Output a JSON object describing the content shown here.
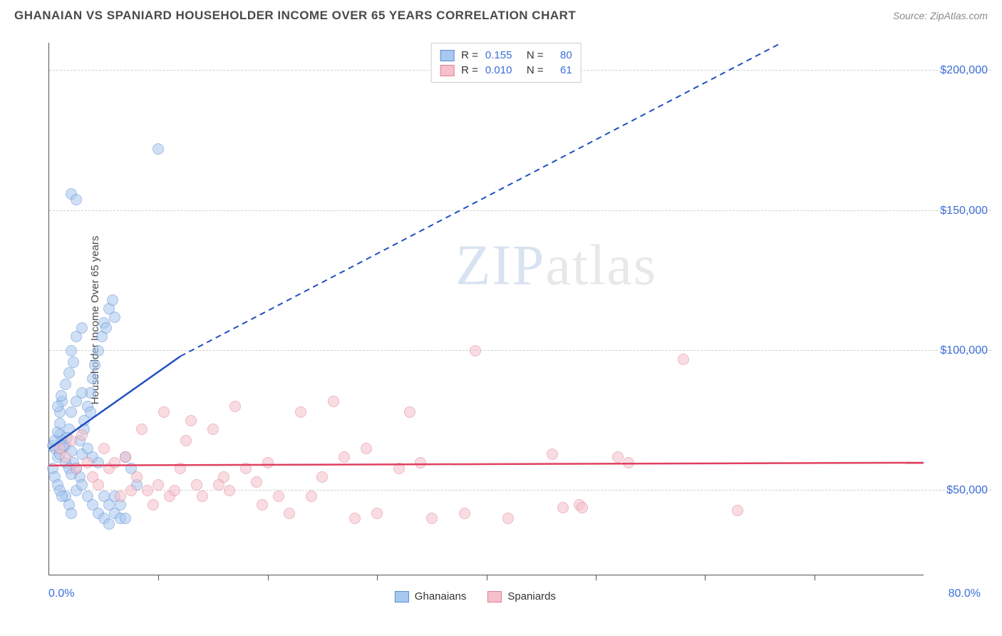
{
  "header": {
    "title": "GHANAIAN VS SPANIARD HOUSEHOLDER INCOME OVER 65 YEARS CORRELATION CHART",
    "source": "Source: ZipAtlas.com"
  },
  "chart": {
    "type": "scatter",
    "y_axis": {
      "label": "Householder Income Over 65 years",
      "min": 20000,
      "max": 210000,
      "ticks": [
        50000,
        100000,
        150000,
        200000
      ],
      "tick_labels": [
        "$50,000",
        "$100,000",
        "$150,000",
        "$200,000"
      ],
      "tick_color": "#3b6fd8"
    },
    "x_axis": {
      "min": 0,
      "max": 80,
      "tick_positions": [
        10,
        20,
        30,
        40,
        50,
        60,
        70
      ],
      "label_left": "0.0%",
      "label_right": "80.0%",
      "label_color": "#3b6fd8"
    },
    "grid_color": "#d0d0d0",
    "background_color": "#ffffff",
    "marker_radius": 8,
    "marker_opacity": 0.55,
    "watermark": "ZIPatlas",
    "series": [
      {
        "name": "Ghanaians",
        "fill_color": "#a8c8f0",
        "stroke_color": "#5a8cd0",
        "line_color": "#2050c0",
        "R": "0.155",
        "N": "80",
        "trend": {
          "x1": 0,
          "y1": 65000,
          "x2_solid": 12,
          "y2_solid": 98000,
          "x2_dash": 67,
          "y2_dash": 210000
        },
        "points": [
          [
            0.5,
            65000
          ],
          [
            0.8,
            62000
          ],
          [
            1.0,
            70000
          ],
          [
            1.2,
            68000
          ],
          [
            1.5,
            66000
          ],
          [
            1.8,
            72000
          ],
          [
            2.0,
            64000
          ],
          [
            2.2,
            60000
          ],
          [
            2.5,
            58000
          ],
          [
            2.8,
            55000
          ],
          [
            3.0,
            63000
          ],
          [
            3.2,
            75000
          ],
          [
            3.5,
            80000
          ],
          [
            3.8,
            85000
          ],
          [
            4.0,
            90000
          ],
          [
            4.2,
            95000
          ],
          [
            4.5,
            100000
          ],
          [
            4.8,
            105000
          ],
          [
            5.0,
            110000
          ],
          [
            5.2,
            108000
          ],
          [
            5.5,
            115000
          ],
          [
            5.8,
            118000
          ],
          [
            6.0,
            112000
          ],
          [
            2.0,
            156000
          ],
          [
            2.5,
            154000
          ],
          [
            1.5,
            48000
          ],
          [
            1.8,
            45000
          ],
          [
            2.0,
            42000
          ],
          [
            2.5,
            50000
          ],
          [
            3.0,
            52000
          ],
          [
            3.5,
            48000
          ],
          [
            4.0,
            45000
          ],
          [
            4.5,
            42000
          ],
          [
            5.0,
            40000
          ],
          [
            5.5,
            38000
          ],
          [
            6.0,
            42000
          ],
          [
            6.5,
            45000
          ],
          [
            7.0,
            62000
          ],
          [
            7.5,
            58000
          ],
          [
            8.0,
            52000
          ],
          [
            1.0,
            78000
          ],
          [
            1.2,
            82000
          ],
          [
            1.5,
            88000
          ],
          [
            1.8,
            92000
          ],
          [
            2.2,
            96000
          ],
          [
            2.8,
            68000
          ],
          [
            3.2,
            72000
          ],
          [
            3.8,
            78000
          ],
          [
            10.0,
            172000
          ],
          [
            0.3,
            58000
          ],
          [
            0.5,
            55000
          ],
          [
            0.8,
            52000
          ],
          [
            1.0,
            50000
          ],
          [
            1.2,
            48000
          ],
          [
            0.3,
            66000
          ],
          [
            0.5,
            68000
          ],
          [
            0.8,
            71000
          ],
          [
            1.0,
            74000
          ],
          [
            5.0,
            48000
          ],
          [
            5.5,
            45000
          ],
          [
            6.0,
            48000
          ],
          [
            6.5,
            40000
          ],
          [
            7.0,
            40000
          ],
          [
            2.0,
            100000
          ],
          [
            2.5,
            105000
          ],
          [
            3.0,
            108000
          ],
          [
            2.0,
            78000
          ],
          [
            2.5,
            82000
          ],
          [
            3.0,
            85000
          ],
          [
            3.5,
            65000
          ],
          [
            4.0,
            62000
          ],
          [
            4.5,
            60000
          ],
          [
            1.5,
            60000
          ],
          [
            1.8,
            58000
          ],
          [
            2.0,
            56000
          ],
          [
            1.0,
            63000
          ],
          [
            1.3,
            66000
          ],
          [
            1.6,
            69000
          ],
          [
            0.8,
            80000
          ],
          [
            1.1,
            84000
          ]
        ]
      },
      {
        "name": "Spaniards",
        "fill_color": "#f5c0cc",
        "stroke_color": "#e08090",
        "line_color": "#e04060",
        "R": "0.010",
        "N": "61",
        "trend": {
          "x1": 0,
          "y1": 59000,
          "x2_solid": 80,
          "y2_solid": 60000,
          "x2_dash": 80,
          "y2_dash": 60000
        },
        "points": [
          [
            1.0,
            65000
          ],
          [
            1.5,
            62000
          ],
          [
            2.0,
            68000
          ],
          [
            2.5,
            58000
          ],
          [
            3.0,
            70000
          ],
          [
            3.5,
            60000
          ],
          [
            4.0,
            55000
          ],
          [
            4.5,
            52000
          ],
          [
            5.0,
            65000
          ],
          [
            5.5,
            58000
          ],
          [
            6.0,
            60000
          ],
          [
            7.0,
            62000
          ],
          [
            8.0,
            55000
          ],
          [
            8.5,
            72000
          ],
          [
            9.0,
            50000
          ],
          [
            10.0,
            52000
          ],
          [
            10.5,
            78000
          ],
          [
            11.0,
            48000
          ],
          [
            12.0,
            58000
          ],
          [
            12.5,
            68000
          ],
          [
            13.0,
            75000
          ],
          [
            14.0,
            48000
          ],
          [
            15.0,
            72000
          ],
          [
            15.5,
            52000
          ],
          [
            16.0,
            55000
          ],
          [
            17.0,
            80000
          ],
          [
            18.0,
            58000
          ],
          [
            19.0,
            53000
          ],
          [
            19.5,
            45000
          ],
          [
            20.0,
            60000
          ],
          [
            21.0,
            48000
          ],
          [
            22.0,
            42000
          ],
          [
            23.0,
            78000
          ],
          [
            24.0,
            48000
          ],
          [
            25.0,
            55000
          ],
          [
            26.0,
            82000
          ],
          [
            27.0,
            62000
          ],
          [
            28.0,
            40000
          ],
          [
            29.0,
            65000
          ],
          [
            30.0,
            42000
          ],
          [
            32.0,
            58000
          ],
          [
            33.0,
            78000
          ],
          [
            34.0,
            60000
          ],
          [
            35.0,
            40000
          ],
          [
            38.0,
            42000
          ],
          [
            39.0,
            100000
          ],
          [
            42.0,
            40000
          ],
          [
            46.0,
            63000
          ],
          [
            47.0,
            44000
          ],
          [
            48.5,
            45000
          ],
          [
            48.8,
            44000
          ],
          [
            52.0,
            62000
          ],
          [
            53.0,
            60000
          ],
          [
            58.0,
            97000
          ],
          [
            63.0,
            43000
          ],
          [
            6.5,
            48000
          ],
          [
            7.5,
            50000
          ],
          [
            9.5,
            45000
          ],
          [
            11.5,
            50000
          ],
          [
            13.5,
            52000
          ],
          [
            16.5,
            50000
          ]
        ]
      }
    ],
    "stats_legend": {
      "rows": [
        {
          "swatch_fill": "#a8c8f0",
          "swatch_stroke": "#5a8cd0",
          "r_label": "R =",
          "r_val": "0.155",
          "n_label": "N =",
          "n_val": "80"
        },
        {
          "swatch_fill": "#f5c0cc",
          "swatch_stroke": "#e08090",
          "r_label": "R =",
          "r_val": "0.010",
          "n_label": "N =",
          "n_val": "61"
        }
      ]
    },
    "series_legend": [
      {
        "swatch_fill": "#a8c8f0",
        "swatch_stroke": "#5a8cd0",
        "label": "Ghanaians"
      },
      {
        "swatch_fill": "#f5c0cc",
        "swatch_stroke": "#e08090",
        "label": "Spaniards"
      }
    ]
  }
}
